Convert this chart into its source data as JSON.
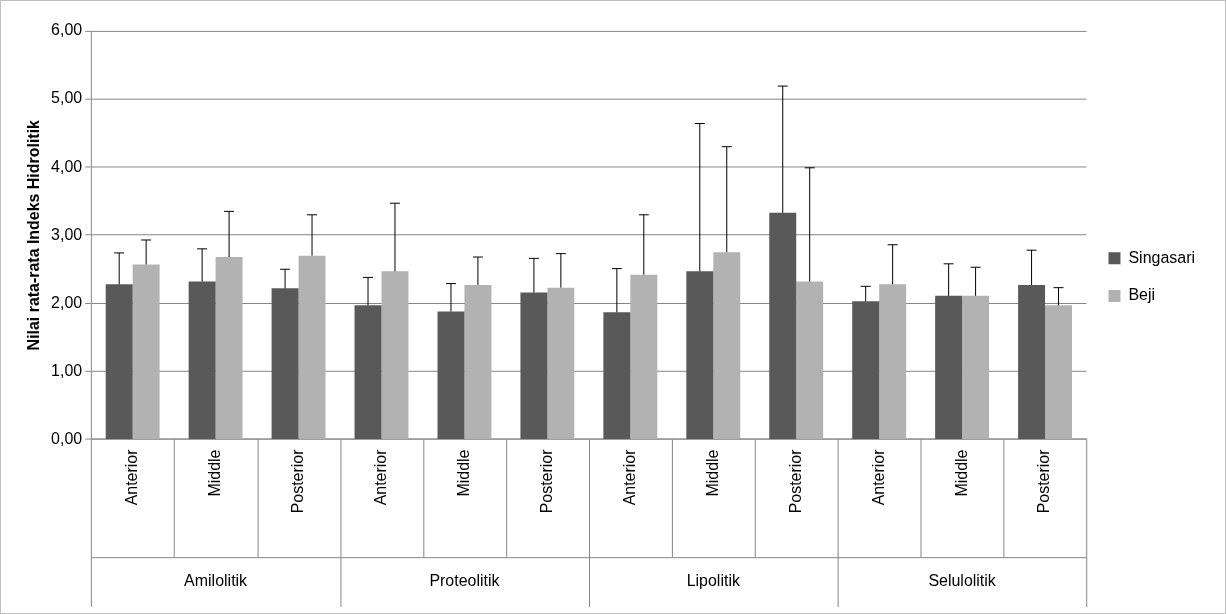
{
  "chart_data": {
    "type": "bar",
    "ylabel": "Nilai rata-rata Indeks Hidrolitik",
    "categories": [
      "Anterior",
      "Middle",
      "Posterior",
      "Anterior",
      "Middle",
      "Posterior",
      "Anterior",
      "Middle",
      "Posterior",
      "Anterior",
      "Middle",
      "Posterior"
    ],
    "annotations": [
      "Amilolitik",
      "Proteolitik",
      "Lipolitik",
      "Selulolitik"
    ],
    "series": [
      {
        "name": "Singasari",
        "color": "#595959",
        "values": [
          2.28,
          2.32,
          2.22,
          1.97,
          1.88,
          2.16,
          1.87,
          2.47,
          3.33,
          2.03,
          2.11,
          2.27
        ],
        "errors": [
          0.46,
          0.48,
          0.28,
          0.41,
          0.41,
          0.5,
          0.64,
          2.17,
          1.86,
          0.22,
          0.47,
          0.51
        ]
      },
      {
        "name": "Beji",
        "color": "#b2b2b2",
        "values": [
          2.57,
          2.68,
          2.7,
          2.47,
          2.27,
          2.23,
          2.42,
          2.75,
          2.32,
          2.28,
          2.11,
          1.97
        ],
        "errors": [
          0.36,
          0.67,
          0.6,
          1.0,
          0.41,
          0.5,
          0.88,
          1.55,
          1.67,
          0.58,
          0.42,
          0.26
        ]
      }
    ],
    "ylim": [
      0,
      6
    ],
    "yticks": [
      {
        "value": 0,
        "label": "0,00"
      },
      {
        "value": 1,
        "label": "1,00"
      },
      {
        "value": 2,
        "label": "2,00"
      },
      {
        "value": 3,
        "label": "3,00"
      },
      {
        "value": 4,
        "label": "4,00"
      },
      {
        "value": 5,
        "label": "5,00"
      },
      {
        "value": 6,
        "label": "6,00"
      }
    ],
    "grid": "y",
    "legend": "right"
  }
}
